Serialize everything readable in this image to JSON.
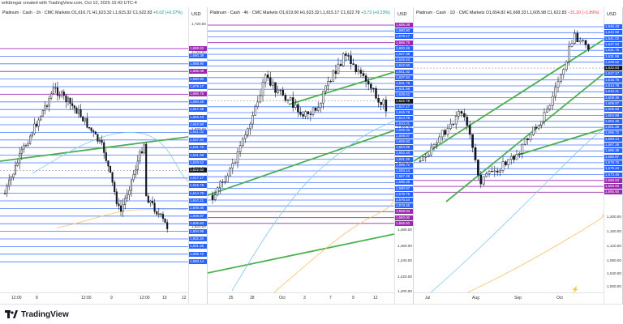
{
  "header": {
    "created_by": "erikbregar created with TradingView.com, Oct 10, 2025 15:43 UTC-4"
  },
  "currency": "USD",
  "panels": [
    {
      "id": "p1",
      "title": "Platinum · Cash · 1h · CMC Markets",
      "ohlc": "O1,616.71 H1,623.32 L1,615.32 C1,622.83",
      "change": "+6.02 (+0.37%)",
      "change_dir": "up",
      "ticks": [
        "1,720.00",
        "1,710.00",
        "1,670.00",
        "1,660.00",
        "1,650.00",
        "1,620.00"
      ],
      "labels": [
        {
          "text": "1,699.82",
          "color": "#9c27b0"
        },
        {
          "text": "1,690.39",
          "color": "#2962ff"
        },
        {
          "text": "1,688.90",
          "color": "#2962ff"
        },
        {
          "text": "1,685.08",
          "color": "#9c27b0"
        },
        {
          "text": "1,680.90",
          "color": "#2962ff"
        },
        {
          "text": "1,679.17",
          "color": "#2962ff"
        },
        {
          "text": "1,666.75",
          "color": "#9c27b0"
        },
        {
          "text": "1,650.26",
          "color": "#2962ff"
        },
        {
          "text": "1,647.38",
          "color": "#2962ff"
        },
        {
          "text": "1,645.43",
          "color": "#2962ff"
        },
        {
          "text": "1,642.50",
          "color": "#2962ff"
        },
        {
          "text": "1,641.02",
          "color": "#2962ff"
        },
        {
          "text": "1,637.94",
          "color": "#2962ff"
        },
        {
          "text": "1,631.75",
          "color": "#2962ff"
        },
        {
          "text": "1,631.59",
          "color": "#2962ff"
        },
        {
          "text": "1,629.62",
          "color": "#2962ff"
        },
        {
          "text": "1,622.83",
          "color": "#131722"
        },
        {
          "text": "1,617.17",
          "color": "#2962ff"
        },
        {
          "text": "1,615.78",
          "color": "#2962ff"
        },
        {
          "text": "1,614.78",
          "color": "#2962ff"
        },
        {
          "text": "1,610.21",
          "color": "#2962ff"
        },
        {
          "text": "1,609.36",
          "color": "#2962ff"
        },
        {
          "text": "1,608.87",
          "color": "#2962ff"
        },
        {
          "text": "1,606.83",
          "color": "#2962ff"
        },
        {
          "text": "1,604.99",
          "color": "#2962ff"
        },
        {
          "text": "1,602.40",
          "color": "#2962ff"
        },
        {
          "text": "1,601.26",
          "color": "#2962ff"
        },
        {
          "text": "1,595.72",
          "color": "#2962ff"
        },
        {
          "text": "1,593.14",
          "color": "#2962ff"
        }
      ],
      "xlabels": [
        "12:00",
        "8",
        "12:00",
        "9",
        "12:00",
        "10",
        "12"
      ]
    },
    {
      "id": "p2",
      "title": "Platinum · Cash · 4h · CMC Markets",
      "ohlc": "O1,619.00 H1,623.32 L1,615.17 C1,622.78",
      "change": "+3.73 (+0.23%)",
      "change_dir": "up",
      "ticks": [
        "1,710.00",
        "1,700.00",
        "1,660.00",
        "1,640.00",
        "1,620.00",
        "1,600.00",
        "1,560.00",
        "1,540.00",
        "1,520.00",
        "1,500.00",
        "1,480.00",
        "1,460.00",
        "1,440.00",
        "1,420.00",
        "1,400.00",
        "1,380.00",
        "1,360.00",
        "1,340.00",
        "1,320.00",
        "1,300.00",
        "1,280.00",
        "1,260.00",
        "1,240.00",
        "1,220.00",
        "1,200.00",
        "1,160.00"
      ],
      "labels": [
        {
          "text": "1,685.08",
          "color": "#9c27b0"
        },
        {
          "text": "1,680.90",
          "color": "#2962ff"
        },
        {
          "text": "1,679.17",
          "color": "#2962ff"
        },
        {
          "text": "1,666.75",
          "color": "#9c27b0"
        },
        {
          "text": "1,650.26",
          "color": "#2962ff"
        },
        {
          "text": "1,647.38",
          "color": "#2962ff"
        },
        {
          "text": "1,645.43",
          "color": "#2962ff"
        },
        {
          "text": "1,642.50",
          "color": "#2962ff"
        },
        {
          "text": "1,641.02",
          "color": "#2962ff"
        },
        {
          "text": "1,637.94",
          "color": "#2962ff"
        },
        {
          "text": "1,631.75",
          "color": "#2962ff"
        },
        {
          "text": "1,631.59",
          "color": "#2962ff"
        },
        {
          "text": "1,629.62",
          "color": "#2962ff"
        },
        {
          "text": "1,622.78",
          "color": "#131722"
        },
        {
          "text": "1,617.17",
          "color": "#2962ff"
        },
        {
          "text": "1,615.78",
          "color": "#2962ff"
        },
        {
          "text": "1,614.78",
          "color": "#2962ff"
        },
        {
          "text": "1,610.21",
          "color": "#2962ff"
        },
        {
          "text": "1,609.36",
          "color": "#2962ff"
        },
        {
          "text": "1,608.87",
          "color": "#2962ff"
        },
        {
          "text": "1,606.83",
          "color": "#2962ff"
        },
        {
          "text": "1,604.99",
          "color": "#2962ff"
        },
        {
          "text": "1,602.40",
          "color": "#2962ff"
        },
        {
          "text": "1,601.26",
          "color": "#2962ff"
        },
        {
          "text": "1,595.72",
          "color": "#2962ff"
        },
        {
          "text": "1,593.14",
          "color": "#2962ff"
        },
        {
          "text": "1,587.28",
          "color": "#2962ff"
        },
        {
          "text": "1,586.38",
          "color": "#2962ff"
        },
        {
          "text": "1,580.87",
          "color": "#2962ff"
        },
        {
          "text": "1,578.75",
          "color": "#2962ff"
        },
        {
          "text": "1,576.44",
          "color": "#2962ff"
        },
        {
          "text": "1,573.46",
          "color": "#2962ff"
        },
        {
          "text": "1,569.83",
          "color": "#9c27b0"
        },
        {
          "text": "1,560.00",
          "color": "#9c27b0"
        },
        {
          "text": "1,555.50",
          "color": "#9c27b0"
        }
      ],
      "xlabels": [
        "25",
        "28",
        "Oct",
        "3",
        "7",
        "9",
        "12"
      ]
    },
    {
      "id": "p3",
      "title": "Platinum · Cash · 1D · CMC Markets",
      "ohlc": "O1,654.82 H1,668.33 L1,605.98 C1,622.83",
      "change": "−31.20 (−1.89%)",
      "change_dir": "down",
      "ticks": [
        "1,200.00",
        "1,160.00",
        "1,120.00",
        "1,080.00",
        "1,040.00",
        "1,000.00",
        "960.00"
      ],
      "labels": [
        {
          "text": "1,645.43",
          "color": "#2962ff"
        },
        {
          "text": "1,642.50",
          "color": "#2962ff"
        },
        {
          "text": "1,641.02",
          "color": "#2962ff"
        },
        {
          "text": "1,637.94",
          "color": "#2962ff"
        },
        {
          "text": "1,631.75",
          "color": "#2962ff"
        },
        {
          "text": "1,631.59",
          "color": "#2962ff"
        },
        {
          "text": "1,629.62",
          "color": "#2962ff"
        },
        {
          "text": "1,622.83",
          "color": "#131722"
        },
        {
          "text": "1,617.17",
          "color": "#2962ff"
        },
        {
          "text": "1,615.78",
          "color": "#2962ff"
        },
        {
          "text": "1,614.78",
          "color": "#2962ff"
        },
        {
          "text": "1,610.21",
          "color": "#2962ff"
        },
        {
          "text": "1,609.36",
          "color": "#2962ff"
        },
        {
          "text": "1,608.87",
          "color": "#2962ff"
        },
        {
          "text": "1,606.83",
          "color": "#2962ff"
        },
        {
          "text": "1,604.99",
          "color": "#2962ff"
        },
        {
          "text": "1,602.40",
          "color": "#2962ff"
        },
        {
          "text": "1,601.26",
          "color": "#2962ff"
        },
        {
          "text": "1,595.72",
          "color": "#2962ff"
        },
        {
          "text": "1,593.14",
          "color": "#2962ff"
        },
        {
          "text": "1,587.28",
          "color": "#2962ff"
        },
        {
          "text": "1,586.38",
          "color": "#2962ff"
        },
        {
          "text": "1,580.87",
          "color": "#2962ff"
        },
        {
          "text": "1,578.75",
          "color": "#2962ff"
        },
        {
          "text": "1,576.44",
          "color": "#2962ff"
        },
        {
          "text": "1,573.46",
          "color": "#2962ff"
        },
        {
          "text": "1,569.83",
          "color": "#9c27b0"
        },
        {
          "text": "1,560.00",
          "color": "#9c27b0"
        },
        {
          "text": "1,555.50",
          "color": "#9c27b0"
        }
      ],
      "xlabels": [
        "Jul",
        "Aug",
        "Sep",
        "Oct"
      ]
    }
  ],
  "footer": {
    "brand": "TradingView"
  },
  "colors": {
    "up": "#089981",
    "down": "#f23645",
    "trend": "#4caf50",
    "support": "#2962ff",
    "key": "#9c27b0",
    "ma_fast": "#7fc8f0",
    "ma_slow": "#f5c36b"
  }
}
